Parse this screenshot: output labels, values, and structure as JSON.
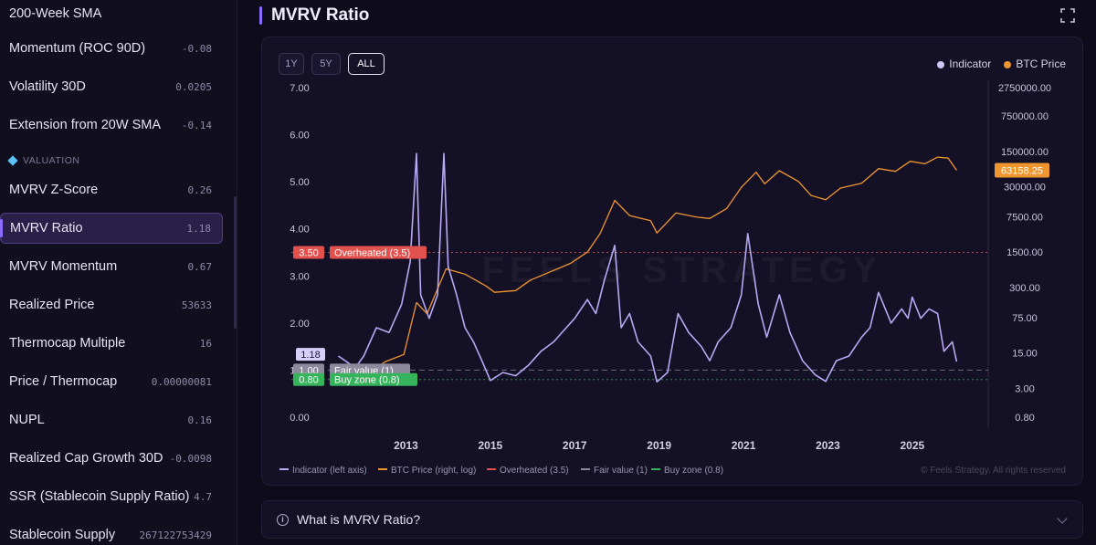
{
  "sidebar": {
    "items": [
      {
        "label": "200-Week SMA",
        "value": ""
      },
      {
        "label": "Momentum (ROC 90D)",
        "value": "-0.08"
      },
      {
        "label": "Volatility 30D",
        "value": "0.0205"
      },
      {
        "label": "Extension from 20W SMA",
        "value": "-0.14"
      },
      {
        "label": "MVRV Z-Score",
        "value": "0.26"
      },
      {
        "label": "MVRV Ratio",
        "value": "1.18"
      },
      {
        "label": "MVRV Momentum",
        "value": "0.67"
      },
      {
        "label": "Realized Price",
        "value": "53633"
      },
      {
        "label": "Thermocap Multiple",
        "value": "16"
      },
      {
        "label": "Price / Thermocap",
        "value": "0.00000081"
      },
      {
        "label": "NUPL",
        "value": "0.16"
      },
      {
        "label": "Realized Cap Growth 30D",
        "value": "-0.0098"
      },
      {
        "label": "SSR (Stablecoin Supply Ratio)",
        "value": "4.7"
      },
      {
        "label": "Stablecoin Supply",
        "value": "267122753429"
      }
    ],
    "section_label": "VALUATION",
    "active_item": "MVRV Ratio"
  },
  "header": {
    "title": "MVRV Ratio"
  },
  "ranges": [
    "1Y",
    "5Y",
    "ALL"
  ],
  "active_range": "ALL",
  "top_legend": {
    "indicator": "Indicator",
    "btc": "BTC Price"
  },
  "watermark": "FEELS STRATEGY",
  "copyright": "© Feels Strategy. All rights reserved",
  "info": {
    "label": "What is MVRV Ratio?"
  },
  "colors": {
    "indicator": "#b7a9f2",
    "btc": "#f0962f",
    "overheated": "#e3514f",
    "fair": "#8e8a9e",
    "buy": "#35b45b",
    "accent": "#8b6cff"
  },
  "chart_data": {
    "type": "line",
    "left_axis": {
      "ticks": [
        "0.00",
        "1.00",
        "2.00",
        "3.00",
        "4.00",
        "5.00",
        "6.00",
        "7.00"
      ],
      "ylim": [
        0,
        7
      ]
    },
    "right_axis": {
      "scale": "log",
      "ticks": [
        "0.80",
        "3.00",
        "15.00",
        "75.00",
        "300.00",
        "1500.00",
        "7500.00",
        "30000.00",
        "150000.00",
        "750000.00",
        "2750000.00"
      ]
    },
    "x_ticks": [
      "2013",
      "2015",
      "2017",
      "2019",
      "2021",
      "2023",
      "2025"
    ],
    "series": [
      {
        "name": "Indicator (left axis)",
        "points": [
          [
            2011.4,
            1.3
          ],
          [
            2011.8,
            1.05
          ],
          [
            2012.0,
            1.3
          ],
          [
            2012.3,
            1.9
          ],
          [
            2012.6,
            1.8
          ],
          [
            2012.9,
            2.4
          ],
          [
            2013.1,
            3.3
          ],
          [
            2013.25,
            5.6
          ],
          [
            2013.35,
            2.6
          ],
          [
            2013.55,
            2.1
          ],
          [
            2013.75,
            2.6
          ],
          [
            2013.9,
            5.6
          ],
          [
            2014.0,
            3.2
          ],
          [
            2014.2,
            2.6
          ],
          [
            2014.4,
            1.9
          ],
          [
            2014.6,
            1.6
          ],
          [
            2014.8,
            1.2
          ],
          [
            2015.0,
            0.78
          ],
          [
            2015.3,
            0.95
          ],
          [
            2015.6,
            0.88
          ],
          [
            2015.9,
            1.1
          ],
          [
            2016.2,
            1.4
          ],
          [
            2016.5,
            1.6
          ],
          [
            2016.8,
            1.9
          ],
          [
            2017.0,
            2.1
          ],
          [
            2017.3,
            2.5
          ],
          [
            2017.5,
            2.2
          ],
          [
            2017.7,
            2.9
          ],
          [
            2017.95,
            3.65
          ],
          [
            2018.1,
            1.9
          ],
          [
            2018.3,
            2.2
          ],
          [
            2018.5,
            1.6
          ],
          [
            2018.8,
            1.3
          ],
          [
            2018.95,
            0.75
          ],
          [
            2019.2,
            0.95
          ],
          [
            2019.45,
            2.2
          ],
          [
            2019.7,
            1.8
          ],
          [
            2020.0,
            1.5
          ],
          [
            2020.2,
            1.2
          ],
          [
            2020.4,
            1.6
          ],
          [
            2020.7,
            1.9
          ],
          [
            2020.95,
            2.6
          ],
          [
            2021.1,
            3.9
          ],
          [
            2021.35,
            2.4
          ],
          [
            2021.55,
            1.7
          ],
          [
            2021.85,
            2.6
          ],
          [
            2022.1,
            1.8
          ],
          [
            2022.4,
            1.2
          ],
          [
            2022.7,
            0.9
          ],
          [
            2022.95,
            0.76
          ],
          [
            2023.2,
            1.2
          ],
          [
            2023.5,
            1.3
          ],
          [
            2023.8,
            1.7
          ],
          [
            2024.0,
            1.9
          ],
          [
            2024.2,
            2.65
          ],
          [
            2024.5,
            2.0
          ],
          [
            2024.75,
            2.3
          ],
          [
            2024.9,
            2.1
          ],
          [
            2025.0,
            2.55
          ],
          [
            2025.2,
            2.1
          ],
          [
            2025.4,
            2.3
          ],
          [
            2025.6,
            2.2
          ],
          [
            2025.75,
            1.4
          ],
          [
            2025.95,
            1.6
          ],
          [
            2026.05,
            1.18
          ]
        ]
      },
      {
        "name": "BTC Price (right, log)",
        "points": [
          [
            2012.0,
            5
          ],
          [
            2012.5,
            10
          ],
          [
            2012.95,
            14
          ],
          [
            2013.25,
            150
          ],
          [
            2013.5,
            90
          ],
          [
            2013.95,
            700
          ],
          [
            2014.4,
            550
          ],
          [
            2014.9,
            320
          ],
          [
            2015.1,
            240
          ],
          [
            2015.6,
            260
          ],
          [
            2015.95,
            420
          ],
          [
            2016.4,
            600
          ],
          [
            2016.9,
            900
          ],
          [
            2017.3,
            1500
          ],
          [
            2017.6,
            3500
          ],
          [
            2017.95,
            16000
          ],
          [
            2018.3,
            8000
          ],
          [
            2018.8,
            6300
          ],
          [
            2018.95,
            3600
          ],
          [
            2019.4,
            9000
          ],
          [
            2019.9,
            7400
          ],
          [
            2020.2,
            7000
          ],
          [
            2020.6,
            11000
          ],
          [
            2020.95,
            29000
          ],
          [
            2021.3,
            58000
          ],
          [
            2021.5,
            34000
          ],
          [
            2021.85,
            62000
          ],
          [
            2022.3,
            38000
          ],
          [
            2022.6,
            20000
          ],
          [
            2022.95,
            16500
          ],
          [
            2023.3,
            28000
          ],
          [
            2023.8,
            35000
          ],
          [
            2024.2,
            68000
          ],
          [
            2024.6,
            60000
          ],
          [
            2024.95,
            95000
          ],
          [
            2025.3,
            85000
          ],
          [
            2025.6,
            115000
          ],
          [
            2025.85,
            110000
          ],
          [
            2026.05,
            63158.25
          ]
        ]
      }
    ],
    "reference_lines": [
      {
        "name": "Overheated (3.5)",
        "value": 3.5,
        "tag": "3.50",
        "label": "Overheated (3.5)"
      },
      {
        "name": "Fair value (1)",
        "value": 1.0,
        "tag": "1.00",
        "label": "Fair value (1)"
      },
      {
        "name": "Buy zone (0.8)",
        "value": 0.8,
        "tag": "0.80",
        "label": "Buy zone (0.8)"
      }
    ],
    "current_indicator_label": "1.18",
    "current_btc_label": "63158.25",
    "bottom_legend": [
      "Indicator (left axis)",
      "BTC Price (right, log)",
      "Overheated (3.5)",
      "Fair value (1)",
      "Buy zone (0.8)"
    ]
  }
}
